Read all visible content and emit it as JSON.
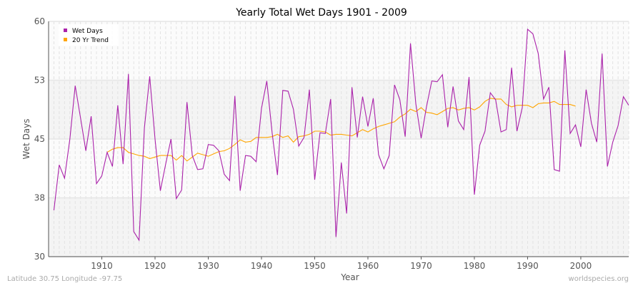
{
  "chart_data": {
    "type": "line",
    "title": "Yearly Total Wet Days 1901 - 2009",
    "xlabel": "Year",
    "ylabel": "Wet Days",
    "xlim": [
      1900,
      2009
    ],
    "ylim": [
      30,
      60
    ],
    "x_ticks": [
      1910,
      1920,
      1930,
      1940,
      1950,
      1960,
      1970,
      1980,
      1990,
      2000
    ],
    "y_ticks": [
      {
        "value": 30,
        "label": "30"
      },
      {
        "value": 37.5,
        "label": "38"
      },
      {
        "value": 45,
        "label": "45"
      },
      {
        "value": 52.5,
        "label": "53"
      },
      {
        "value": 60,
        "label": "60"
      }
    ],
    "grid": true,
    "legend_position": "top-left",
    "series": [
      {
        "name": "Wet Days",
        "color": "#aa22aa",
        "start_year": 1901,
        "values": [
          35.9,
          41.7,
          40.0,
          45.0,
          51.8,
          47.7,
          43.5,
          47.9,
          39.3,
          40.3,
          43.3,
          41.5,
          49.3,
          41.8,
          53.3,
          33.2,
          32.1,
          46.4,
          53.0,
          45.0,
          38.4,
          41.8,
          45.0,
          37.4,
          38.5,
          49.7,
          42.9,
          41.1,
          41.2,
          44.3,
          44.2,
          43.5,
          40.5,
          39.7,
          50.5,
          38.4,
          42.9,
          42.8,
          42.1,
          48.9,
          52.4,
          45.8,
          40.4,
          51.2,
          51.1,
          48.8,
          44.1,
          45.2,
          51.3,
          39.8,
          45.8,
          45.7,
          50.1,
          32.5,
          42.0,
          35.5,
          51.6,
          45.2,
          50.4,
          46.6,
          50.2,
          43.0,
          41.2,
          42.9,
          51.9,
          50.0,
          45.3,
          57.2,
          49.5,
          45.1,
          49.1,
          52.4,
          52.3,
          53.2,
          46.5,
          51.7,
          47.3,
          46.2,
          52.9,
          37.9,
          44.2,
          46.0,
          50.9,
          50.0,
          45.9,
          46.2,
          54.1,
          46.0,
          49.0,
          59.0,
          58.4,
          55.9,
          50.1,
          51.6,
          41.1,
          40.9,
          56.3,
          45.7,
          46.8,
          44.0,
          51.3,
          47.0,
          44.6,
          55.9,
          41.5,
          44.6,
          46.7,
          50.4,
          49.3
        ]
      },
      {
        "name": "20 Yr Trend",
        "color": "#ffa500",
        "start_year": 1911,
        "values": [
          43.3,
          43.7,
          43.9,
          43.9,
          43.3,
          43.1,
          42.9,
          42.8,
          42.5,
          42.7,
          42.9,
          42.9,
          42.9,
          42.3,
          42.9,
          42.2,
          42.7,
          43.2,
          43.0,
          42.8,
          43.1,
          43.4,
          43.5,
          43.8,
          44.3,
          44.9,
          44.6,
          44.7,
          45.2,
          45.2,
          45.2,
          45.3,
          45.6,
          45.2,
          45.4,
          44.6,
          45.3,
          45.4,
          45.6,
          46.0,
          46.0,
          45.9,
          45.5,
          45.6,
          45.6,
          45.5,
          45.4,
          45.8,
          46.2,
          45.9,
          46.3,
          46.6,
          46.8,
          47.0,
          47.2,
          47.8,
          48.2,
          48.8,
          48.5,
          49.0,
          48.4,
          48.3,
          48.1,
          48.5,
          48.9,
          49.0,
          48.7,
          48.9,
          49.0,
          48.7,
          49.1,
          49.8,
          50.2,
          50.1,
          50.1,
          49.4,
          49.1,
          49.3,
          49.3,
          49.3,
          49.0,
          49.5,
          49.6,
          49.6,
          49.8,
          49.4,
          49.4,
          49.4,
          49.2
        ]
      }
    ]
  },
  "footer": {
    "location": "Latitude 30.75 Longitude -97.75",
    "source": "worldspecies.org"
  }
}
